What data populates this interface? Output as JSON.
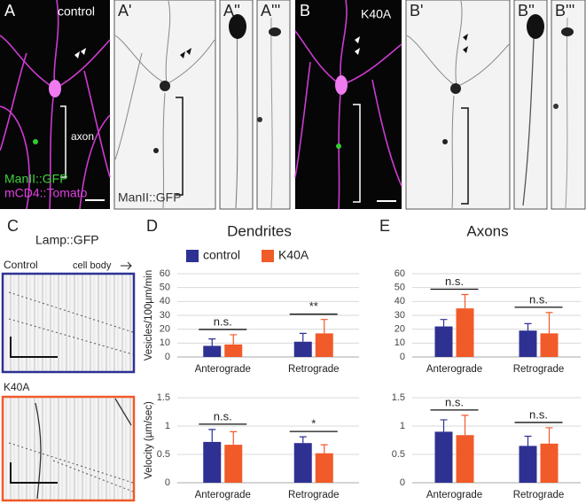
{
  "panel_labels": [
    "A",
    "A'",
    "A''",
    "A'''",
    "B",
    "B'",
    "B''",
    "B'''",
    "C",
    "D",
    "E"
  ],
  "image_labels": {
    "control": "control",
    "axon": "axon",
    "gfp": "ManII::GFP",
    "tomato": "mCD4::Tomato",
    "gfp_gray": "ManII::GFP",
    "k40a": "K40A"
  },
  "kymograph": {
    "title": "Lamp::GFP",
    "control": "Control",
    "cell_body": "cell body",
    "k40a": "K40A"
  },
  "chart_data": [
    {
      "type": "bar",
      "title": "Dendrites",
      "ylabel": "Vesicles/100µm/min",
      "categories": [
        "Anterograde",
        "Retrograde"
      ],
      "series": [
        {
          "name": "control",
          "color": "#2e3192",
          "values": [
            8,
            11
          ],
          "errors": [
            5,
            6
          ]
        },
        {
          "name": "K40A",
          "color": "#f15a29",
          "values": [
            9,
            17
          ],
          "errors": [
            7,
            10
          ]
        }
      ],
      "annotations": [
        "n.s.",
        "**"
      ],
      "ylim": [
        0,
        60
      ],
      "yticks": [
        0,
        10,
        20,
        30,
        40,
        50,
        60
      ],
      "grid": true,
      "legend": "top"
    },
    {
      "type": "bar",
      "ylabel": "Velocity (µm/sec)",
      "categories": [
        "Anterograde",
        "Retrograde"
      ],
      "series": [
        {
          "color": "#2e3192",
          "values": [
            0.72,
            0.7
          ],
          "errors": [
            0.22,
            0.11
          ]
        },
        {
          "color": "#f15a29",
          "values": [
            0.67,
            0.52
          ],
          "errors": [
            0.23,
            0.15
          ]
        }
      ],
      "annotations": [
        "n.s.",
        "*"
      ],
      "ylim": [
        0,
        1.5
      ],
      "yticks": [
        0,
        0.5,
        1,
        1.5
      ],
      "grid": true
    },
    {
      "type": "bar",
      "title": "Axons",
      "categories": [
        "Anterograde",
        "Retrograde"
      ],
      "series": [
        {
          "color": "#2e3192",
          "values": [
            22,
            19
          ],
          "errors": [
            5,
            5
          ]
        },
        {
          "color": "#f15a29",
          "values": [
            35,
            17
          ],
          "errors": [
            10,
            15
          ]
        }
      ],
      "annotations": [
        "n.s.",
        "n.s."
      ],
      "ylim": [
        0,
        60
      ],
      "yticks": [
        0,
        10,
        20,
        30,
        40,
        50,
        60
      ],
      "grid": true
    },
    {
      "type": "bar",
      "categories": [
        "Anterograde",
        "Retrograde"
      ],
      "series": [
        {
          "color": "#2e3192",
          "values": [
            0.9,
            0.65
          ],
          "errors": [
            0.21,
            0.17
          ]
        },
        {
          "color": "#f15a29",
          "values": [
            0.84,
            0.69
          ],
          "errors": [
            0.35,
            0.28
          ]
        }
      ],
      "annotations": [
        "n.s.",
        "n.s."
      ],
      "ylim": [
        0,
        1.5
      ],
      "yticks": [
        0,
        0.5,
        1,
        1.5
      ],
      "grid": true
    }
  ]
}
